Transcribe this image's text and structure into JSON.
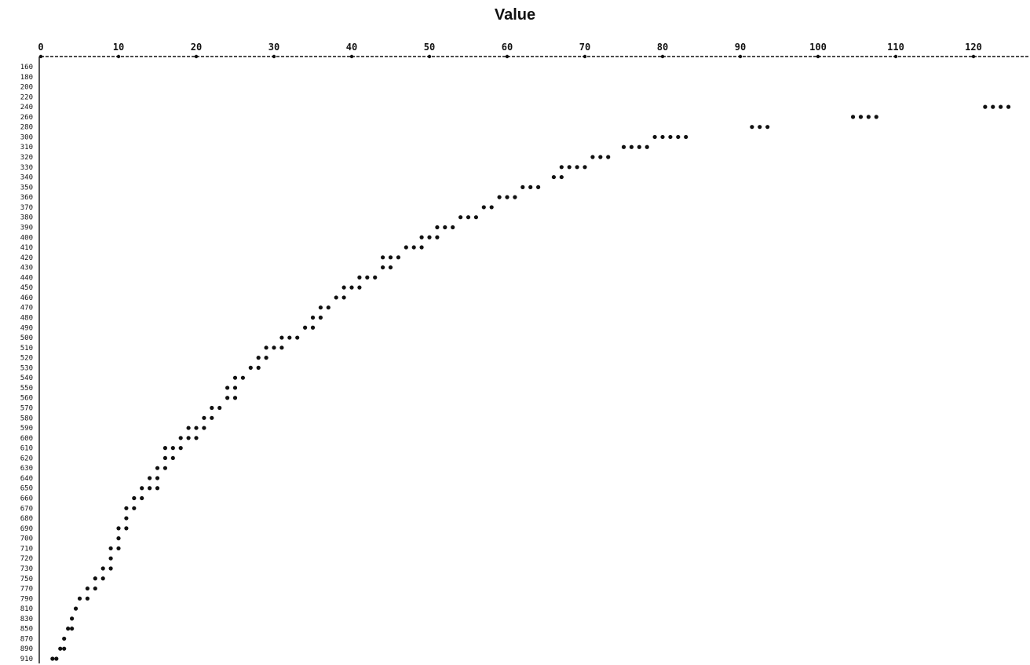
{
  "chart_data": {
    "type": "scatter",
    "title": "Value",
    "xlabel": "",
    "ylabel": "",
    "xlim": [
      0,
      126
    ],
    "x_ticks": [
      "0",
      "10",
      "20",
      "30",
      "40",
      "50",
      "60",
      "70",
      "80",
      "90",
      "100",
      "110",
      "120"
    ],
    "x_tick_values": [
      0,
      10,
      20,
      30,
      40,
      50,
      60,
      70,
      80,
      90,
      100,
      110,
      120
    ],
    "y_categories": [
      "160",
      "180",
      "200",
      "220",
      "240",
      "260",
      "280",
      "300",
      "310",
      "320",
      "330",
      "340",
      "350",
      "360",
      "370",
      "380",
      "390",
      "400",
      "410",
      "420",
      "430",
      "440",
      "450",
      "460",
      "470",
      "480",
      "490",
      "500",
      "510",
      "520",
      "530",
      "540",
      "550",
      "560",
      "570",
      "580",
      "590",
      "600",
      "610",
      "620",
      "630",
      "640",
      "650",
      "660",
      "670",
      "680",
      "690",
      "700",
      "710",
      "720",
      "730",
      "750",
      "770",
      "790",
      "810",
      "830",
      "850",
      "870",
      "890",
      "910"
    ],
    "grid": false,
    "legend": "none",
    "marker_color": "#111111",
    "points": [
      {
        "y": "240",
        "x": [
          121.5,
          122.5,
          123.5,
          124.5
        ]
      },
      {
        "y": "260",
        "x": [
          104.5,
          105.5,
          106.5,
          107.5
        ]
      },
      {
        "y": "280",
        "x": [
          91.5,
          92.5,
          93.5
        ]
      },
      {
        "y": "300",
        "x": [
          79,
          80,
          81,
          82,
          83
        ]
      },
      {
        "y": "310",
        "x": [
          75,
          76,
          77,
          78
        ]
      },
      {
        "y": "320",
        "x": [
          71,
          72,
          73
        ]
      },
      {
        "y": "330",
        "x": [
          67,
          68,
          69,
          70
        ]
      },
      {
        "y": "340",
        "x": [
          66,
          67
        ]
      },
      {
        "y": "350",
        "x": [
          62,
          63,
          64
        ]
      },
      {
        "y": "360",
        "x": [
          59,
          60,
          61
        ]
      },
      {
        "y": "370",
        "x": [
          57,
          58
        ]
      },
      {
        "y": "380",
        "x": [
          54,
          55,
          56
        ]
      },
      {
        "y": "390",
        "x": [
          51,
          52,
          53
        ]
      },
      {
        "y": "400",
        "x": [
          49,
          50,
          51
        ]
      },
      {
        "y": "410",
        "x": [
          47,
          48,
          49
        ]
      },
      {
        "y": "420",
        "x": [
          44,
          45,
          46
        ]
      },
      {
        "y": "430",
        "x": [
          44,
          45
        ]
      },
      {
        "y": "440",
        "x": [
          41,
          42,
          43
        ]
      },
      {
        "y": "450",
        "x": [
          39,
          40,
          41
        ]
      },
      {
        "y": "460",
        "x": [
          38,
          39
        ]
      },
      {
        "y": "470",
        "x": [
          36,
          37
        ]
      },
      {
        "y": "480",
        "x": [
          35,
          36
        ]
      },
      {
        "y": "490",
        "x": [
          34,
          35
        ]
      },
      {
        "y": "500",
        "x": [
          31,
          32,
          33
        ]
      },
      {
        "y": "510",
        "x": [
          29,
          30,
          31
        ]
      },
      {
        "y": "520",
        "x": [
          28,
          29
        ]
      },
      {
        "y": "530",
        "x": [
          27,
          28
        ]
      },
      {
        "y": "540",
        "x": [
          25,
          26
        ]
      },
      {
        "y": "550",
        "x": [
          24,
          25
        ]
      },
      {
        "y": "560",
        "x": [
          24,
          25
        ]
      },
      {
        "y": "570",
        "x": [
          22,
          23
        ]
      },
      {
        "y": "580",
        "x": [
          21,
          22
        ]
      },
      {
        "y": "590",
        "x": [
          19,
          20,
          21
        ]
      },
      {
        "y": "600",
        "x": [
          18,
          19,
          20
        ]
      },
      {
        "y": "610",
        "x": [
          16,
          17,
          18
        ]
      },
      {
        "y": "620",
        "x": [
          16,
          17
        ]
      },
      {
        "y": "630",
        "x": [
          15,
          16
        ]
      },
      {
        "y": "640",
        "x": [
          14,
          15
        ]
      },
      {
        "y": "650",
        "x": [
          13,
          14,
          15
        ]
      },
      {
        "y": "660",
        "x": [
          12,
          13
        ]
      },
      {
        "y": "670",
        "x": [
          11,
          12
        ]
      },
      {
        "y": "680",
        "x": [
          11
        ]
      },
      {
        "y": "690",
        "x": [
          10,
          11
        ]
      },
      {
        "y": "700",
        "x": [
          10
        ]
      },
      {
        "y": "710",
        "x": [
          9,
          10
        ]
      },
      {
        "y": "720",
        "x": [
          9
        ]
      },
      {
        "y": "730",
        "x": [
          8,
          9
        ]
      },
      {
        "y": "750",
        "x": [
          7,
          8
        ]
      },
      {
        "y": "770",
        "x": [
          6,
          7
        ]
      },
      {
        "y": "790",
        "x": [
          5,
          6
        ]
      },
      {
        "y": "810",
        "x": [
          4.5
        ]
      },
      {
        "y": "830",
        "x": [
          4
        ]
      },
      {
        "y": "850",
        "x": [
          3.5,
          4
        ]
      },
      {
        "y": "870",
        "x": [
          3
        ]
      },
      {
        "y": "890",
        "x": [
          2.5,
          3
        ]
      },
      {
        "y": "910",
        "x": [
          1.5,
          2
        ]
      }
    ]
  }
}
